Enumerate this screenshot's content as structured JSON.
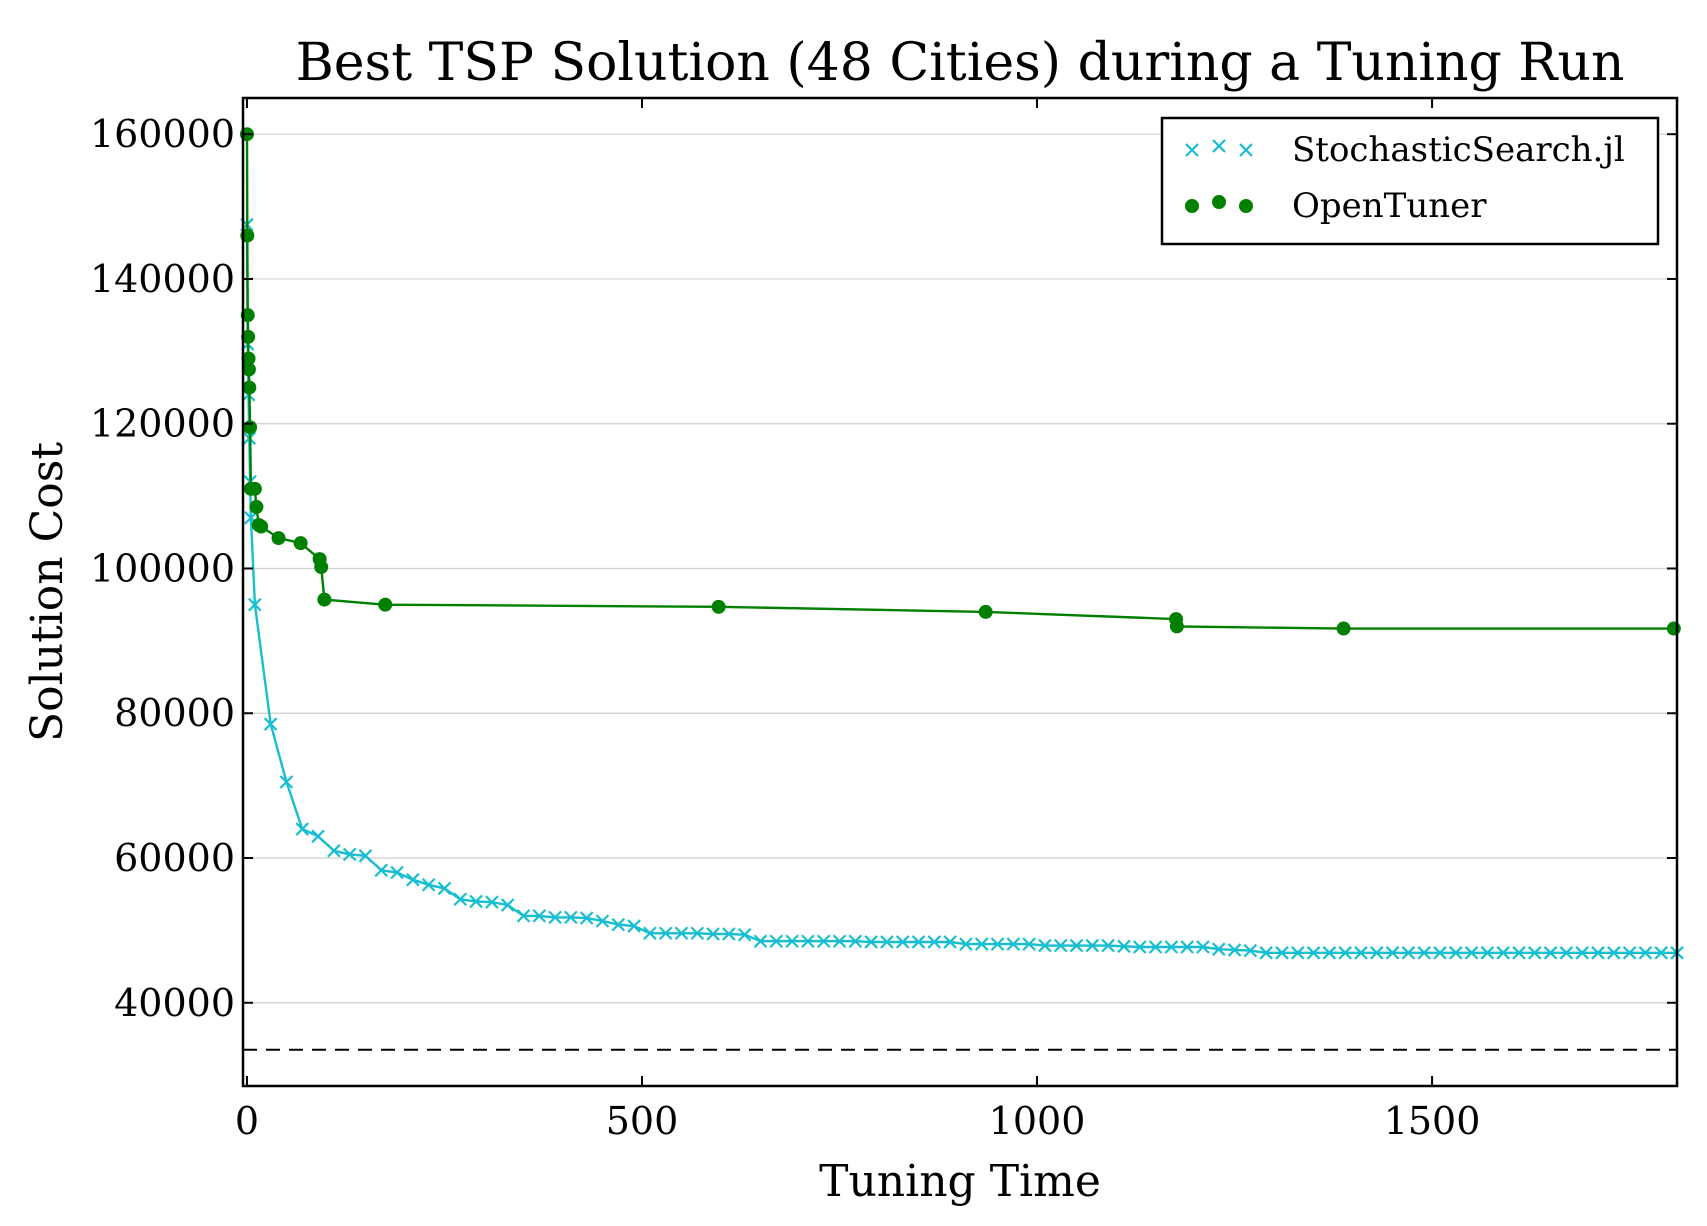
{
  "chart_data": {
    "type": "line",
    "title": "Best TSP Solution (48 Cities) during a Tuning Run",
    "xlabel": "Tuning Time",
    "ylabel": "Solution Cost",
    "xlim": [
      -5,
      1810
    ],
    "ylim": [
      28500,
      165000
    ],
    "xticks": [
      0,
      500,
      1000,
      1500
    ],
    "yticks": [
      40000,
      60000,
      80000,
      100000,
      120000,
      140000,
      160000
    ],
    "xtick_labels": [
      "0",
      "500",
      "1000",
      "1500"
    ],
    "ytick_labels": [
      "40000",
      "60000",
      "80000",
      "100000",
      "120000",
      "140000",
      "160000"
    ],
    "grid": "horizontal",
    "legend_position": "top-right",
    "reference_line": {
      "y": 33500,
      "style": "dashed",
      "color": "#000000"
    },
    "series": [
      {
        "name": "StochasticSearch.jl",
        "marker": "x",
        "color": "#17becf",
        "x": [
          0,
          1,
          2,
          3,
          4,
          5,
          10,
          30,
          50,
          70,
          90,
          110,
          130,
          150,
          170,
          190,
          210,
          230,
          250,
          270,
          290,
          310,
          330,
          350,
          370,
          390,
          410,
          430,
          450,
          470,
          490,
          510,
          530,
          550,
          570,
          590,
          610,
          630,
          650,
          670,
          690,
          710,
          730,
          750,
          770,
          790,
          810,
          830,
          850,
          870,
          890,
          910,
          930,
          950,
          970,
          990,
          1010,
          1030,
          1050,
          1070,
          1090,
          1110,
          1130,
          1150,
          1170,
          1190,
          1210,
          1230,
          1250,
          1270,
          1290,
          1310,
          1330,
          1350,
          1370,
          1390,
          1410,
          1430,
          1450,
          1470,
          1490,
          1510,
          1530,
          1550,
          1570,
          1590,
          1610,
          1630,
          1650,
          1670,
          1690,
          1710,
          1730,
          1750,
          1770,
          1790,
          1810
        ],
        "y": [
          147500,
          131000,
          124000,
          118000,
          112000,
          107000,
          95000,
          78500,
          70500,
          64000,
          63000,
          61000,
          60500,
          60300,
          58300,
          58000,
          57000,
          56300,
          55800,
          54300,
          54000,
          53900,
          53500,
          52000,
          52000,
          51800,
          51800,
          51700,
          51300,
          50800,
          50600,
          49600,
          49600,
          49600,
          49600,
          49500,
          49500,
          49400,
          48500,
          48500,
          48500,
          48500,
          48500,
          48500,
          48500,
          48400,
          48400,
          48400,
          48400,
          48400,
          48400,
          48100,
          48100,
          48100,
          48100,
          48100,
          47900,
          47900,
          47900,
          47900,
          47900,
          47800,
          47700,
          47700,
          47700,
          47700,
          47700,
          47400,
          47300,
          47200,
          46900,
          46900,
          46900,
          46900,
          46900,
          46900,
          46900,
          46900,
          46900,
          46900,
          46900,
          46900,
          46900,
          46900,
          46900,
          46900,
          46900,
          46900,
          46900,
          46900,
          46900,
          46900,
          46900,
          46900,
          46900,
          46900,
          46900
        ]
      },
      {
        "name": "OpenTuner",
        "marker": "o",
        "color": "#008000",
        "x": [
          0,
          0.5,
          1,
          1.5,
          2,
          2.5,
          3,
          4,
          5,
          10,
          12,
          15,
          18,
          40,
          68,
          92,
          94,
          98,
          175,
          597,
          935,
          1176,
          1177,
          1388,
          1806
        ],
        "y": [
          160000,
          146000,
          135000,
          132000,
          129000,
          127500,
          125000,
          119500,
          111000,
          111000,
          108500,
          106000,
          105800,
          104200,
          103500,
          101300,
          100200,
          95700,
          95000,
          94700,
          94000,
          93000,
          92000,
          91700,
          91700
        ]
      }
    ]
  }
}
